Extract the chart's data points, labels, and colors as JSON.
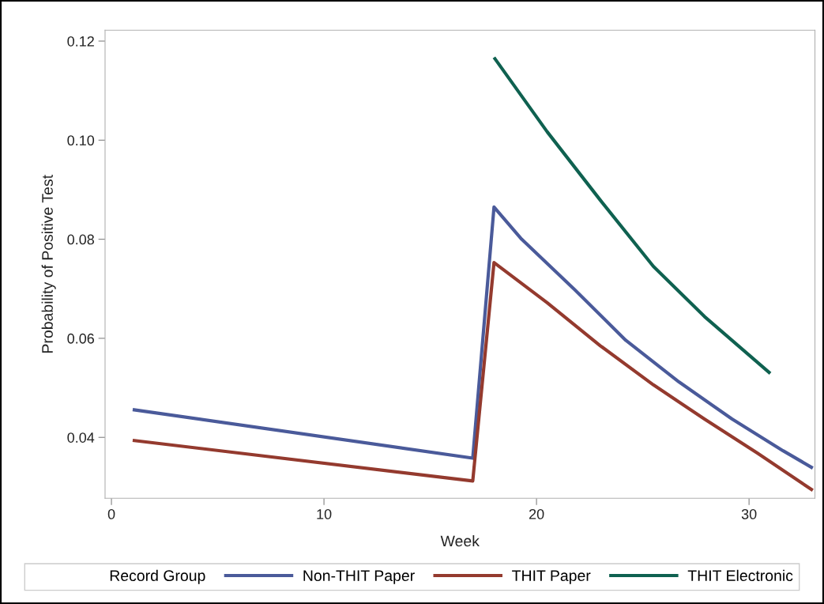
{
  "chart_data": {
    "type": "line",
    "xlabel": "Week",
    "ylabel": "Probability of Positive Test",
    "legend_title": "Record Group",
    "legend": "bottom",
    "grid": false,
    "marker": "none",
    "line_style": "solid",
    "xlim": [
      -0.3,
      33.1
    ],
    "ylim": [
      0.0277,
      0.1222
    ],
    "xticks": [
      0,
      10,
      20,
      30
    ],
    "yticks": [
      0.04,
      0.06,
      0.08,
      {
        "value": 0.1,
        "label": "0.10"
      },
      0.12
    ],
    "series": [
      {
        "name": "Non-THIT Paper",
        "color": "#4a5a9a",
        "x": [
          1,
          17,
          18,
          19.3,
          21.8,
          24.2,
          26.7,
          29.2,
          31.6,
          33
        ],
        "values": [
          0.0456,
          0.0358,
          0.0865,
          0.08,
          0.0698,
          0.0596,
          0.0512,
          0.0437,
          0.0373,
          0.0338
        ]
      },
      {
        "name": "THIT Paper",
        "color": "#943a2e",
        "x": [
          1,
          17,
          18,
          20.5,
          23,
          25.5,
          27.9,
          30.4,
          33
        ],
        "values": [
          0.0394,
          0.0312,
          0.0753,
          0.0672,
          0.0585,
          0.0506,
          0.0437,
          0.0368,
          0.0293
        ]
      },
      {
        "name": "THIT Electronic",
        "color": "#0f6150",
        "x": [
          18,
          20.5,
          23,
          25.5,
          27.9,
          31
        ],
        "values": [
          0.1167,
          0.1017,
          0.0879,
          0.0745,
          0.0644,
          0.0529
        ]
      }
    ]
  }
}
